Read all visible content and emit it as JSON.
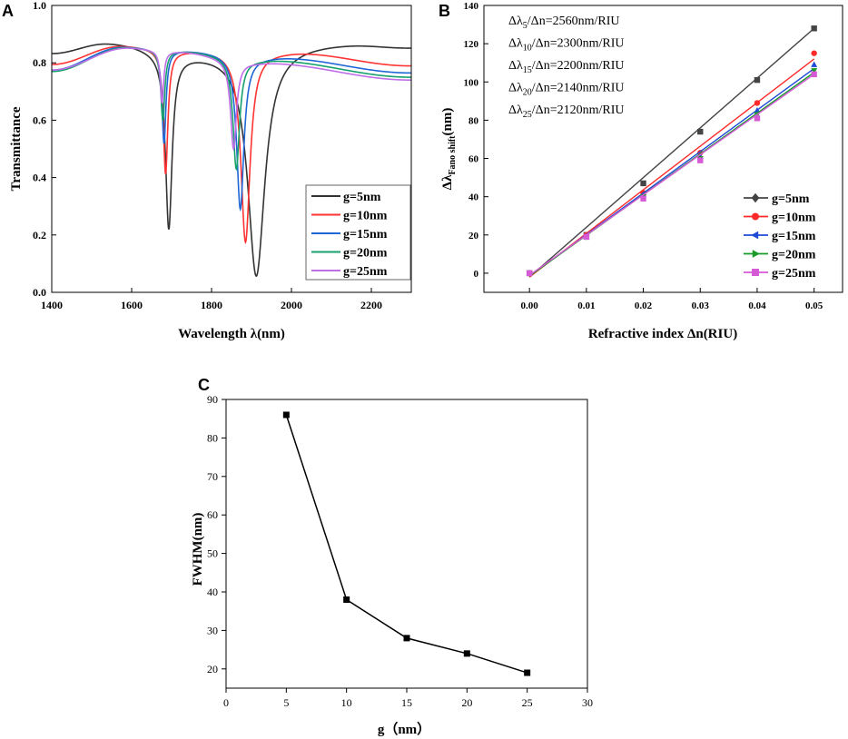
{
  "chart_data": [
    {
      "panel": "A",
      "type": "line",
      "xlabel": "Wavelength λ(nm)",
      "ylabel": "Transmittance",
      "xlim": [
        1400,
        2300
      ],
      "ylim": [
        0.0,
        1.0
      ],
      "xticks": [
        1400,
        1600,
        1800,
        2000,
        2200
      ],
      "yticks": [
        0.0,
        0.2,
        0.4,
        0.6,
        0.8,
        1.0
      ],
      "legend_position": "center-right",
      "series": [
        {
          "name": "g=5nm",
          "color": "#333333",
          "base_left": 0.835,
          "base_right": 0.865,
          "peak1_l": 1540,
          "peak1_v": 0.872,
          "dip1_l": 1693,
          "dip1_v": 0.23,
          "mid_l": 1740,
          "mid_v": 0.835,
          "dip2_l": 1912,
          "dip2_v": 0.058,
          "peak2_l": 2140,
          "peak2_v": 0.868,
          "end_v": 0.855,
          "w1": 10,
          "w2": 26
        },
        {
          "name": "g=10nm",
          "color": "#ff3333",
          "base_left": 0.795,
          "base_right": 0.79,
          "peak1_l": 1575,
          "peak1_v": 0.86,
          "dip1_l": 1685,
          "dip1_v": 0.415,
          "mid_l": 1725,
          "mid_v": 0.845,
          "dip2_l": 1885,
          "dip2_v": 0.175,
          "peak2_l": 1995,
          "peak2_v": 0.838,
          "end_v": 0.79,
          "w1": 7,
          "w2": 14
        },
        {
          "name": "g=15nm",
          "color": "#1f66d6",
          "base_left": 0.775,
          "base_right": 0.765,
          "peak1_l": 1580,
          "peak1_v": 0.856,
          "dip1_l": 1681,
          "dip1_v": 0.52,
          "mid_l": 1715,
          "mid_v": 0.845,
          "dip2_l": 1872,
          "dip2_v": 0.29,
          "peak2_l": 1955,
          "peak2_v": 0.82,
          "end_v": 0.765,
          "w1": 6,
          "w2": 11
        },
        {
          "name": "g=20nm",
          "color": "#16a06e",
          "base_left": 0.77,
          "base_right": 0.75,
          "peak1_l": 1585,
          "peak1_v": 0.854,
          "dip1_l": 1678,
          "dip1_v": 0.6,
          "mid_l": 1710,
          "mid_v": 0.843,
          "dip2_l": 1862,
          "dip2_v": 0.43,
          "peak2_l": 1935,
          "peak2_v": 0.81,
          "end_v": 0.75,
          "w1": 6,
          "w2": 10
        },
        {
          "name": "g=25nm",
          "color": "#c06ee8",
          "base_left": 0.775,
          "base_right": 0.74,
          "peak1_l": 1590,
          "peak1_v": 0.852,
          "dip1_l": 1676,
          "dip1_v": 0.66,
          "mid_l": 1705,
          "mid_v": 0.84,
          "dip2_l": 1855,
          "dip2_v": 0.5,
          "peak2_l": 1925,
          "peak2_v": 0.8,
          "end_v": 0.74,
          "w1": 5,
          "w2": 9
        }
      ]
    },
    {
      "panel": "B",
      "type": "scatter",
      "xlabel_main": "Refractive index Δn(RIU)",
      "ylabel_main": "Δλ",
      "ylabel_sub": "Fano shift",
      "ylabel_unit": "(nm)",
      "xlim": [
        -0.008,
        0.055
      ],
      "ylim": [
        -10,
        140
      ],
      "xticks": [
        "0.00",
        "0.01",
        "0.02",
        "0.03",
        "0.04",
        "0.05"
      ],
      "yticks": [
        0,
        20,
        40,
        60,
        80,
        100,
        120,
        140
      ],
      "x": [
        0.0,
        0.01,
        0.02,
        0.03,
        0.04,
        0.05
      ],
      "legend_position": "bottom-right",
      "series": [
        {
          "name": "g=5nm",
          "color": "#444444",
          "marker": "square",
          "legend_marker": "diamond",
          "values": [
            0,
            20,
            47,
            74,
            101,
            128
          ],
          "fit_y0": -2,
          "fit_y1": 128
        },
        {
          "name": "g=10nm",
          "color": "#ff2a2a",
          "marker": "circle",
          "legend_marker": "circle",
          "values": [
            0,
            20,
            42,
            63,
            89,
            115
          ],
          "fit_y0": -2,
          "fit_y1": 112
        },
        {
          "name": "g=15nm",
          "color": "#1f4ad6",
          "marker": "triangle-up",
          "legend_marker": "triangle-left",
          "values": [
            0,
            19,
            41,
            61,
            85,
            109
          ],
          "fit_y0": -1.5,
          "fit_y1": 107
        },
        {
          "name": "g=20nm",
          "color": "#1a9a2a",
          "marker": "triangle-down",
          "legend_marker": "triangle-right",
          "values": [
            0,
            19,
            40,
            60,
            83,
            106
          ],
          "fit_y0": -1.5,
          "fit_y1": 105
        },
        {
          "name": "g=25nm",
          "color": "#d65ad6",
          "marker": "square",
          "legend_marker": "square",
          "values": [
            0,
            19,
            39,
            59,
            81,
            104
          ],
          "fit_y0": -1,
          "fit_y1": 104
        }
      ],
      "annotations": [
        {
          "main": "Δλ",
          "sub": "5",
          "rest": "/Δn=2560nm/RIU"
        },
        {
          "main": "Δλ",
          "sub": "10",
          "rest": "/Δn=2300nm/RIU"
        },
        {
          "main": "Δλ",
          "sub": "15",
          "rest": "/Δn=2200nm/RIU"
        },
        {
          "main": "Δλ",
          "sub": "20",
          "rest": "/Δn=2140nm/RIU"
        },
        {
          "main": "Δλ",
          "sub": "25",
          "rest": "/Δn=2120nm/RIU"
        }
      ]
    },
    {
      "panel": "C",
      "type": "line",
      "xlabel": "g（nm）",
      "ylabel": "FWHM(nm)",
      "xlim": [
        0,
        30
      ],
      "ylim": [
        15,
        90
      ],
      "xticks": [
        0,
        5,
        10,
        15,
        20,
        25,
        30
      ],
      "yticks": [
        20,
        30,
        40,
        50,
        60,
        70,
        80,
        90
      ],
      "x": [
        5,
        10,
        15,
        20,
        25
      ],
      "values": [
        86,
        38,
        28,
        24,
        19
      ],
      "color": "#000000"
    }
  ]
}
